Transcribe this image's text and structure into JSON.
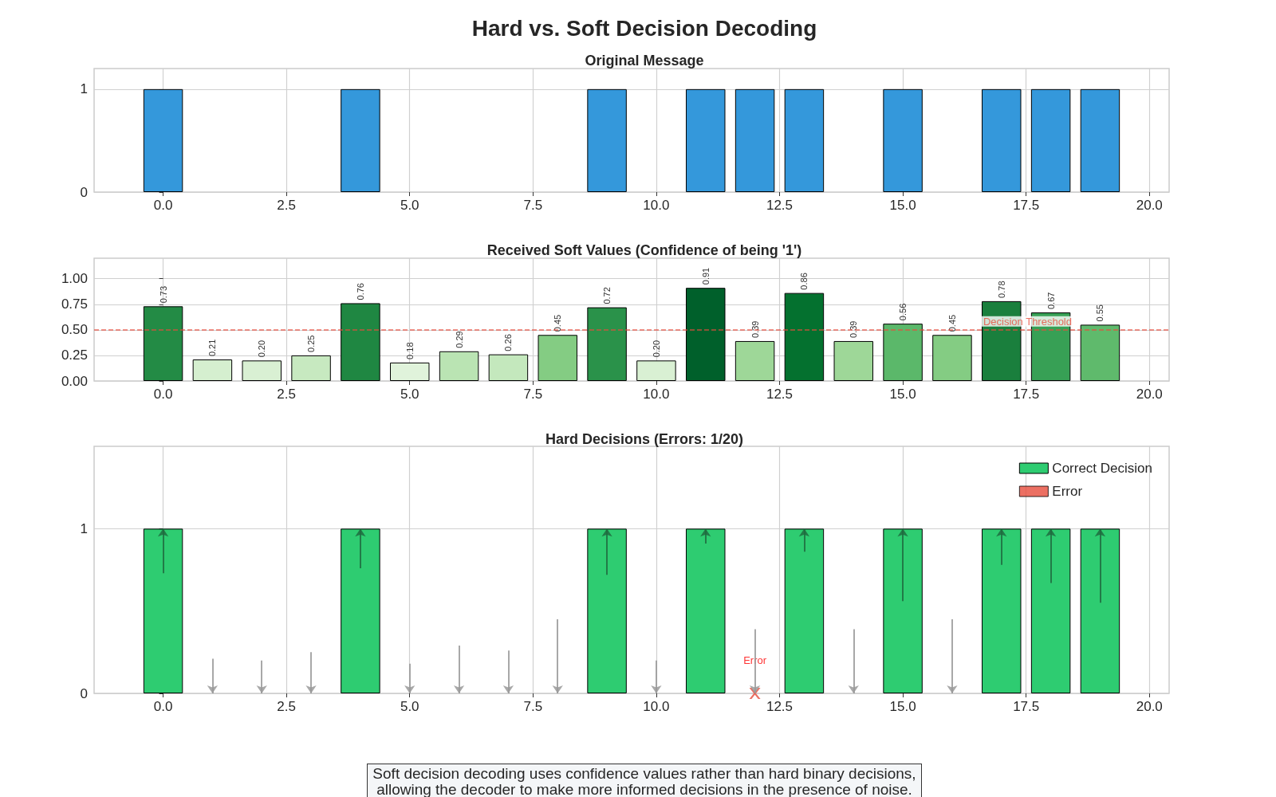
{
  "chart_data": [
    {
      "type": "bar",
      "title": "Hard vs. Soft Decision Decoding",
      "subtitle": "Original Message",
      "x": [
        0,
        1,
        2,
        3,
        4,
        5,
        6,
        7,
        8,
        9,
        10,
        11,
        12,
        13,
        14,
        15,
        16,
        17,
        18,
        19
      ],
      "values": [
        1,
        0,
        0,
        0,
        1,
        0,
        0,
        0,
        0,
        1,
        0,
        1,
        1,
        1,
        0,
        1,
        0,
        1,
        1,
        1
      ],
      "color": "#3498db",
      "xlim": [
        -1.4,
        20.4
      ],
      "ylim": [
        0,
        1.2
      ],
      "xticks": [
        {
          "value": 0,
          "label": "0.0"
        },
        {
          "value": 2.5,
          "label": "2.5"
        },
        {
          "value": 5,
          "label": "5.0"
        },
        {
          "value": 7.5,
          "label": "7.5"
        },
        {
          "value": 10,
          "label": "10.0"
        },
        {
          "value": 12.5,
          "label": "12.5"
        },
        {
          "value": 15,
          "label": "15.0"
        },
        {
          "value": 17.5,
          "label": "17.5"
        },
        {
          "value": 20,
          "label": "20.0"
        }
      ],
      "yticks": [
        {
          "value": 0,
          "label": "0"
        },
        {
          "value": 1,
          "label": "1"
        }
      ],
      "grid": true
    },
    {
      "type": "bar",
      "title": "Received Soft Values (Confidence of being '1')",
      "x": [
        0,
        1,
        2,
        3,
        4,
        5,
        6,
        7,
        8,
        9,
        10,
        11,
        12,
        13,
        14,
        15,
        16,
        17,
        18,
        19
      ],
      "values": [
        0.73,
        0.21,
        0.2,
        0.25,
        0.76,
        0.18,
        0.29,
        0.26,
        0.45,
        0.72,
        0.2,
        0.91,
        0.39,
        0.86,
        0.39,
        0.56,
        0.45,
        0.78,
        0.67,
        0.55
      ],
      "value_labels": [
        "0.73",
        "0.21",
        "0.20",
        "0.25",
        "0.76",
        "0.18",
        "0.29",
        "0.26",
        "0.45",
        "0.72",
        "0.20",
        "0.91",
        "0.39",
        "0.86",
        "0.39",
        "0.56",
        "0.45",
        "0.78",
        "0.67",
        "0.55"
      ],
      "colors": [
        "#238b45",
        "#d5efcf",
        "#d9f0d3",
        "#c7e9c0",
        "#1f8742",
        "#e0f3db",
        "#bae4b3",
        "#c4e8bd",
        "#84cc83",
        "#2a924a",
        "#d9f0d3",
        "#00602b",
        "#9ed798",
        "#04712f",
        "#9ed798",
        "#5bb86a",
        "#84cc83",
        "#1a7f3d",
        "#37a055",
        "#5fba6c"
      ],
      "ref_lines": [
        {
          "axis": "y",
          "value": 0.5,
          "label": "Decision Threshold",
          "color": "#e74c3c",
          "line_style": "dashed"
        }
      ],
      "xlim": [
        -1.4,
        20.4
      ],
      "ylim": [
        0,
        1.2
      ],
      "xticks": [
        {
          "value": 0,
          "label": "0.0"
        },
        {
          "value": 2.5,
          "label": "2.5"
        },
        {
          "value": 5,
          "label": "5.0"
        },
        {
          "value": 7.5,
          "label": "7.5"
        },
        {
          "value": 10,
          "label": "10.0"
        },
        {
          "value": 12.5,
          "label": "12.5"
        },
        {
          "value": 15,
          "label": "15.0"
        },
        {
          "value": 17.5,
          "label": "17.5"
        },
        {
          "value": 20,
          "label": "20.0"
        }
      ],
      "yticks": [
        {
          "value": 0,
          "label": "0.00"
        },
        {
          "value": 0.25,
          "label": "0.25"
        },
        {
          "value": 0.5,
          "label": "0.50"
        },
        {
          "value": 0.75,
          "label": "0.75"
        },
        {
          "value": 1,
          "label": "1.00"
        }
      ],
      "grid": true
    },
    {
      "type": "bar",
      "title": "Hard Decisions (Errors: 1/20)",
      "x": [
        0,
        1,
        2,
        3,
        4,
        5,
        6,
        7,
        8,
        9,
        10,
        11,
        12,
        13,
        14,
        15,
        16,
        17,
        18,
        19
      ],
      "series": [
        {
          "name": "Correct Decision",
          "color": "#2ecc71",
          "values": [
            1,
            null,
            null,
            null,
            1,
            null,
            null,
            null,
            null,
            1,
            null,
            1,
            null,
            1,
            null,
            1,
            null,
            1,
            1,
            1
          ]
        },
        {
          "name": "Error",
          "color": "#e74c3c",
          "type": "scatter",
          "marker": "cross",
          "x": [
            12
          ],
          "values": [
            0
          ],
          "value_labels": [
            "Error"
          ]
        }
      ],
      "annotations": [
        "Soft decision decoding uses confidence values rather than hard binary decisions,\nallowing the decoder to make more informed decisions in the presence of noise."
      ],
      "xlim": [
        -1.4,
        20.4
      ],
      "ylim": [
        0,
        1.5
      ],
      "xticks": [
        {
          "value": 0,
          "label": "0.0"
        },
        {
          "value": 2.5,
          "label": "2.5"
        },
        {
          "value": 5,
          "label": "5.0"
        },
        {
          "value": 7.5,
          "label": "7.5"
        },
        {
          "value": 10,
          "label": "10.0"
        },
        {
          "value": 12.5,
          "label": "12.5"
        },
        {
          "value": 15,
          "label": "15.0"
        },
        {
          "value": 17.5,
          "label": "17.5"
        },
        {
          "value": 20,
          "label": "20.0"
        }
      ],
      "yticks": [
        {
          "value": 0,
          "label": "0"
        },
        {
          "value": 1,
          "label": "1"
        }
      ],
      "grid": true,
      "legend": "top right"
    }
  ]
}
